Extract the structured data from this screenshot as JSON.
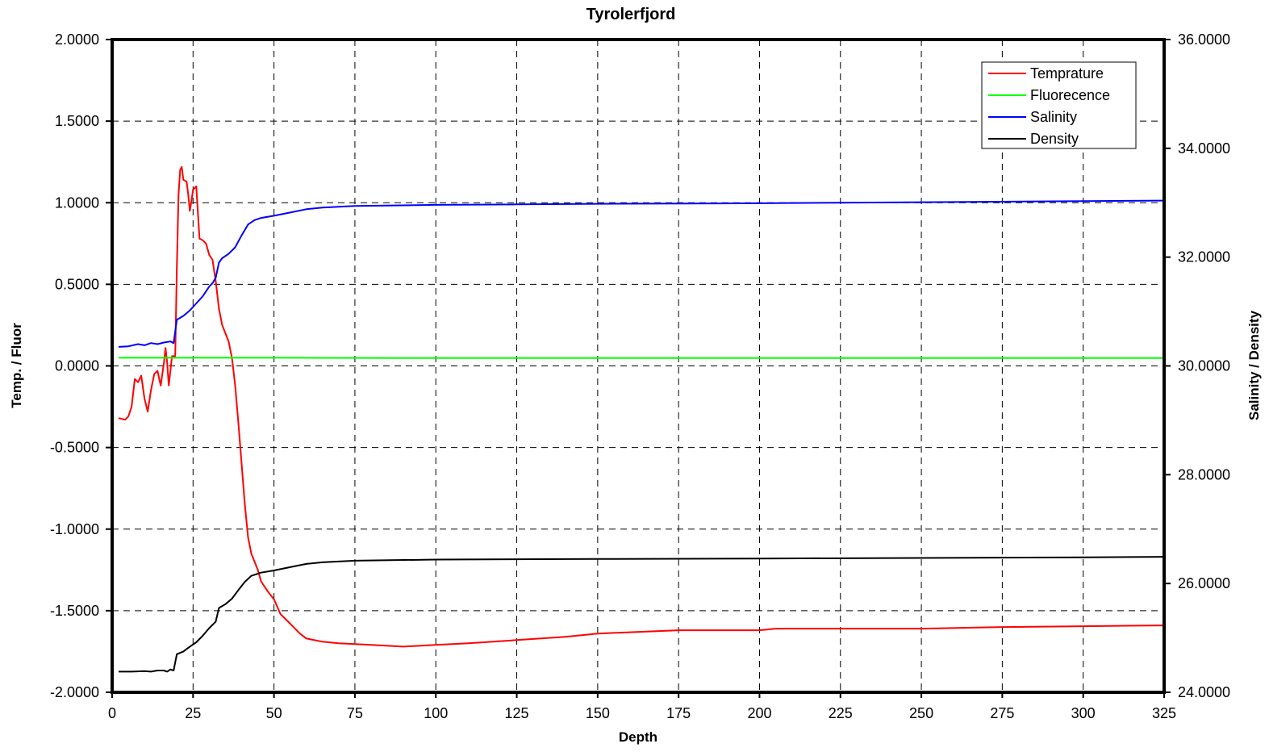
{
  "chart_data": {
    "type": "line",
    "title": "Tyrolerfjord",
    "xlabel": "Depth",
    "ylabel_left": "Temp. / Fluor",
    "ylabel_right": "Salinity / Density",
    "xlim": [
      0,
      325
    ],
    "ylim_left": [
      -2,
      2
    ],
    "ylim_right": [
      24,
      36
    ],
    "grid": true,
    "legend_position": "top-right",
    "x_ticks": [
      "0",
      "25",
      "50",
      "75",
      "100",
      "125",
      "150",
      "175",
      "200",
      "225",
      "250",
      "275",
      "300",
      "325"
    ],
    "y_left_ticks": [
      "2.0000",
      "1.5000",
      "1.0000",
      "0.5000",
      "0.0000",
      "-0.5000",
      "-1.0000",
      "-1.5000",
      "-2.0000"
    ],
    "y_right_ticks": [
      "36.0000",
      "34.0000",
      "32.0000",
      "30.0000",
      "28.0000",
      "26.0000",
      "24.0000"
    ],
    "series": [
      {
        "name": "Temprature",
        "axis": "left",
        "color": "#ff0000",
        "points": [
          [
            2,
            -0.32
          ],
          [
            4,
            -0.33
          ],
          [
            5,
            -0.31
          ],
          [
            6,
            -0.25
          ],
          [
            7,
            -0.08
          ],
          [
            8,
            -0.1
          ],
          [
            9,
            -0.06
          ],
          [
            10,
            -0.2
          ],
          [
            11,
            -0.28
          ],
          [
            12,
            -0.15
          ],
          [
            13,
            -0.05
          ],
          [
            14,
            -0.03
          ],
          [
            15,
            -0.12
          ],
          [
            16,
            0.02
          ],
          [
            16.5,
            0.11
          ],
          [
            17,
            0.02
          ],
          [
            17.5,
            -0.12
          ],
          [
            18,
            -0.03
          ],
          [
            18.5,
            0.06
          ],
          [
            19.5,
            0.06
          ],
          [
            20,
            0.6
          ],
          [
            20.5,
            1.05
          ],
          [
            21,
            1.2
          ],
          [
            21.5,
            1.22
          ],
          [
            22,
            1.14
          ],
          [
            23,
            1.13
          ],
          [
            23.5,
            1.05
          ],
          [
            24,
            0.95
          ],
          [
            24.5,
            1.01
          ],
          [
            25,
            1.08
          ],
          [
            26,
            1.1
          ],
          [
            27,
            0.78
          ],
          [
            28,
            0.77
          ],
          [
            29,
            0.75
          ],
          [
            30,
            0.68
          ],
          [
            31,
            0.65
          ],
          [
            32,
            0.52
          ],
          [
            33,
            0.35
          ],
          [
            34,
            0.25
          ],
          [
            35,
            0.2
          ],
          [
            36,
            0.15
          ],
          [
            37,
            0.05
          ],
          [
            38,
            -0.12
          ],
          [
            39,
            -0.35
          ],
          [
            40,
            -0.6
          ],
          [
            41,
            -0.85
          ],
          [
            42,
            -1.05
          ],
          [
            43,
            -1.15
          ],
          [
            45,
            -1.25
          ],
          [
            46,
            -1.32
          ],
          [
            48,
            -1.38
          ],
          [
            50,
            -1.43
          ],
          [
            52,
            -1.52
          ],
          [
            54,
            -1.56
          ],
          [
            56,
            -1.6
          ],
          [
            58,
            -1.64
          ],
          [
            60,
            -1.67
          ],
          [
            65,
            -1.69
          ],
          [
            70,
            -1.7
          ],
          [
            80,
            -1.71
          ],
          [
            90,
            -1.72
          ],
          [
            100,
            -1.71
          ],
          [
            110,
            -1.7
          ],
          [
            125,
            -1.68
          ],
          [
            140,
            -1.66
          ],
          [
            150,
            -1.64
          ],
          [
            175,
            -1.62
          ],
          [
            200,
            -1.62
          ],
          [
            205,
            -1.61
          ],
          [
            225,
            -1.61
          ],
          [
            250,
            -1.61
          ],
          [
            275,
            -1.6
          ],
          [
            300,
            -1.595
          ],
          [
            325,
            -1.59
          ]
        ]
      },
      {
        "name": "Fluorecence",
        "axis": "left",
        "color": "#00ff00",
        "points": [
          [
            2,
            0.05
          ],
          [
            50,
            0.05
          ],
          [
            100,
            0.048
          ],
          [
            150,
            0.048
          ],
          [
            200,
            0.048
          ],
          [
            250,
            0.048
          ],
          [
            300,
            0.048
          ],
          [
            325,
            0.048
          ]
        ]
      },
      {
        "name": "Salinity",
        "axis": "right",
        "color": "#0000ff",
        "points": [
          [
            2,
            30.35
          ],
          [
            5,
            30.36
          ],
          [
            8,
            30.4
          ],
          [
            10,
            30.38
          ],
          [
            12,
            30.42
          ],
          [
            14,
            30.4
          ],
          [
            16,
            30.43
          ],
          [
            18,
            30.45
          ],
          [
            19,
            30.42
          ],
          [
            20,
            30.85
          ],
          [
            22,
            30.92
          ],
          [
            24,
            31.02
          ],
          [
            26,
            31.15
          ],
          [
            28,
            31.28
          ],
          [
            30,
            31.46
          ],
          [
            31,
            31.52
          ],
          [
            32,
            31.62
          ],
          [
            33,
            31.9
          ],
          [
            34,
            31.98
          ],
          [
            36,
            32.06
          ],
          [
            38,
            32.18
          ],
          [
            40,
            32.4
          ],
          [
            42,
            32.6
          ],
          [
            44,
            32.68
          ],
          [
            46,
            32.72
          ],
          [
            50,
            32.76
          ],
          [
            55,
            32.82
          ],
          [
            60,
            32.88
          ],
          [
            65,
            32.91
          ],
          [
            75,
            32.94
          ],
          [
            100,
            32.96
          ],
          [
            125,
            32.97
          ],
          [
            150,
            32.98
          ],
          [
            200,
            32.99
          ],
          [
            250,
            33.01
          ],
          [
            300,
            33.03
          ],
          [
            325,
            33.04
          ]
        ]
      },
      {
        "name": "Density",
        "axis": "right",
        "color": "#000000",
        "points": [
          [
            2,
            24.38
          ],
          [
            6,
            24.38
          ],
          [
            10,
            24.39
          ],
          [
            12,
            24.38
          ],
          [
            14,
            24.4
          ],
          [
            16,
            24.4
          ],
          [
            17,
            24.38
          ],
          [
            18,
            24.42
          ],
          [
            19,
            24.4
          ],
          [
            20,
            24.7
          ],
          [
            22,
            24.75
          ],
          [
            24,
            24.84
          ],
          [
            26,
            24.92
          ],
          [
            28,
            25.04
          ],
          [
            30,
            25.18
          ],
          [
            32,
            25.3
          ],
          [
            33,
            25.55
          ],
          [
            35,
            25.62
          ],
          [
            37,
            25.72
          ],
          [
            39,
            25.88
          ],
          [
            41,
            26.03
          ],
          [
            43,
            26.14
          ],
          [
            46,
            26.2
          ],
          [
            50,
            26.24
          ],
          [
            55,
            26.3
          ],
          [
            60,
            26.36
          ],
          [
            65,
            26.39
          ],
          [
            75,
            26.42
          ],
          [
            100,
            26.44
          ],
          [
            150,
            26.45
          ],
          [
            200,
            26.46
          ],
          [
            250,
            26.47
          ],
          [
            300,
            26.48
          ],
          [
            325,
            26.49
          ]
        ]
      }
    ]
  }
}
